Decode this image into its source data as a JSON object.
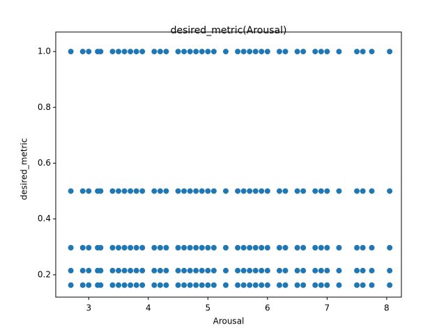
{
  "chart_data": {
    "type": "scatter",
    "title": "desired_metric(Arousal)",
    "x_label": "Arousal",
    "y_label": "desired_metric",
    "color": "#1f77b4",
    "grid": false,
    "xlim": [
      2.447,
      8.247
    ],
    "ylim": [
      0.12,
      1.07
    ],
    "xticks": [
      3,
      4,
      5,
      6,
      7,
      8
    ],
    "yticks": [
      0.2,
      0.4,
      0.6,
      0.8,
      {
        "value": 1,
        "label": "1.0"
      }
    ],
    "x": [
      2.7,
      2.9,
      3.0,
      3.15,
      3.2,
      3.4,
      3.5,
      3.6,
      3.7,
      3.8,
      3.9,
      4.1,
      4.2,
      4.3,
      4.5,
      4.6,
      4.7,
      4.8,
      4.9,
      5.0,
      5.1,
      5.3,
      5.5,
      5.6,
      5.7,
      5.8,
      5.9,
      6.0,
      6.2,
      6.3,
      6.5,
      6.6,
      6.8,
      6.9,
      7.0,
      7.2,
      7.5,
      7.6,
      7.75,
      8.05,
      2.7,
      2.9,
      3.0,
      3.15,
      3.2,
      3.4,
      3.5,
      3.6,
      3.7,
      3.8,
      3.9,
      4.1,
      4.2,
      4.3,
      4.5,
      4.6,
      4.7,
      4.8,
      4.9,
      5.0,
      5.1,
      5.3,
      5.5,
      5.6,
      5.7,
      5.8,
      5.9,
      6.0,
      6.2,
      6.3,
      6.5,
      6.6,
      6.8,
      6.9,
      7.0,
      7.2,
      7.5,
      7.6,
      7.75,
      8.05,
      2.7,
      2.9,
      3.0,
      3.15,
      3.2,
      3.4,
      3.5,
      3.6,
      3.7,
      3.8,
      3.9,
      4.1,
      4.2,
      4.3,
      4.5,
      4.6,
      4.7,
      4.8,
      4.9,
      5.0,
      5.1,
      5.3,
      5.5,
      5.6,
      5.7,
      5.8,
      5.9,
      6.0,
      6.2,
      6.3,
      6.5,
      6.6,
      6.8,
      6.9,
      7.0,
      7.2,
      7.5,
      7.6,
      7.75,
      8.05,
      2.7,
      2.9,
      3.0,
      3.15,
      3.2,
      3.4,
      3.5,
      3.6,
      3.7,
      3.8,
      3.9,
      4.1,
      4.2,
      4.3,
      4.5,
      4.6,
      4.7,
      4.8,
      4.9,
      5.0,
      5.1,
      5.3,
      5.5,
      5.6,
      5.7,
      5.8,
      5.9,
      6.0,
      6.2,
      6.3,
      6.5,
      6.6,
      6.8,
      6.9,
      7.0,
      7.2,
      7.5,
      7.6,
      7.75,
      8.05,
      2.7,
      2.9,
      3.0,
      3.15,
      3.2,
      3.4,
      3.5,
      3.6,
      3.7,
      3.8,
      3.9,
      4.1,
      4.2,
      4.3,
      4.5,
      4.6,
      4.7,
      4.8,
      4.9,
      5.0,
      5.1,
      5.3,
      5.5,
      5.6,
      5.7,
      5.8,
      5.9,
      6.0,
      6.2,
      6.3,
      6.5,
      6.6,
      6.8,
      6.9,
      7.0,
      7.2,
      7.5,
      7.6,
      7.75,
      8.05
    ],
    "values": [
      1,
      1,
      1,
      1,
      1,
      1,
      1,
      1,
      1,
      1,
      1,
      1,
      1,
      1,
      1,
      1,
      1,
      1,
      1,
      1,
      1,
      1,
      1,
      1,
      1,
      1,
      1,
      1,
      1,
      1,
      1,
      1,
      1,
      1,
      1,
      1,
      1,
      1,
      1,
      1,
      0.5,
      0.5,
      0.5,
      0.5,
      0.5,
      0.5,
      0.5,
      0.5,
      0.5,
      0.5,
      0.5,
      0.5,
      0.5,
      0.5,
      0.5,
      0.5,
      0.5,
      0.5,
      0.5,
      0.5,
      0.5,
      0.5,
      0.5,
      0.5,
      0.5,
      0.5,
      0.5,
      0.5,
      0.5,
      0.5,
      0.5,
      0.5,
      0.5,
      0.5,
      0.5,
      0.5,
      0.5,
      0.5,
      0.5,
      0.5,
      0.297,
      0.297,
      0.297,
      0.297,
      0.297,
      0.297,
      0.297,
      0.297,
      0.297,
      0.297,
      0.297,
      0.297,
      0.297,
      0.297,
      0.297,
      0.297,
      0.297,
      0.297,
      0.297,
      0.297,
      0.297,
      0.297,
      0.297,
      0.297,
      0.297,
      0.297,
      0.297,
      0.297,
      0.297,
      0.297,
      0.297,
      0.297,
      0.297,
      0.297,
      0.297,
      0.297,
      0.297,
      0.297,
      0.297,
      0.297,
      0.215,
      0.215,
      0.215,
      0.215,
      0.215,
      0.215,
      0.215,
      0.215,
      0.215,
      0.215,
      0.215,
      0.215,
      0.215,
      0.215,
      0.215,
      0.215,
      0.215,
      0.215,
      0.215,
      0.215,
      0.215,
      0.215,
      0.215,
      0.215,
      0.215,
      0.215,
      0.215,
      0.215,
      0.215,
      0.215,
      0.215,
      0.215,
      0.215,
      0.215,
      0.215,
      0.215,
      0.215,
      0.215,
      0.215,
      0.215,
      0.163,
      0.163,
      0.163,
      0.163,
      0.163,
      0.163,
      0.163,
      0.163,
      0.163,
      0.163,
      0.163,
      0.163,
      0.163,
      0.163,
      0.163,
      0.163,
      0.163,
      0.163,
      0.163,
      0.163,
      0.163,
      0.163,
      0.163,
      0.163,
      0.163,
      0.163,
      0.163,
      0.163,
      0.163,
      0.163,
      0.163,
      0.163,
      0.163,
      0.163,
      0.163,
      0.163,
      0.163,
      0.163,
      0.163,
      0.163
    ]
  }
}
